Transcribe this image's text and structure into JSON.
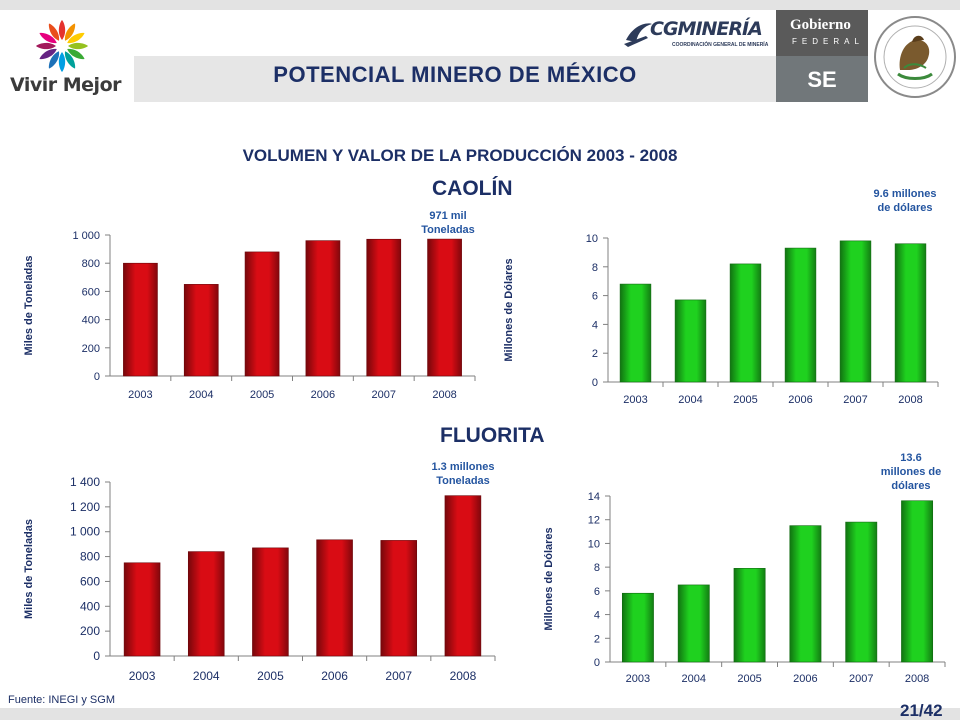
{
  "header": {
    "logo_left_text": "Vivir Mejor",
    "title": "POTENCIAL MINERO DE MÉXICO",
    "cgm_logo_text": "CGMINERÍA",
    "cgm_logo_sub": "COORDINACIÓN GENERAL DE MINERÍA",
    "gob_text": "Gobierno",
    "gob_sub": "FEDERAL",
    "se_text": "SE"
  },
  "subtitle": "VOLUMEN Y VALOR DE LA PRODUCCIÓN   2003 - 2008",
  "sections": {
    "caolin": "CAOLÍN",
    "fluorita": "FLUORITA"
  },
  "annotations": {
    "caolin_volume": [
      "971 mil",
      "Toneladas"
    ],
    "caolin_value": [
      "9.6 millones",
      "de dólares"
    ],
    "fluorita_volume": [
      "1.3 millones",
      "Toneladas"
    ],
    "fluorita_value": [
      "13.6",
      "millones de",
      "dólares"
    ]
  },
  "footer": {
    "source": "Fuente: INEGI y SGM",
    "page": "21/42"
  },
  "colors": {
    "red_bar": "#d90c14",
    "green_bar": "#1fd11f",
    "title_navy": "#1c2f66",
    "annotation_blue": "#2455a0"
  },
  "chart_data": [
    {
      "type": "bar",
      "title": "",
      "ylabel": "Miles de Toneladas",
      "categories": [
        "2003",
        "2004",
        "2005",
        "2006",
        "2007",
        "2008"
      ],
      "values": [
        800,
        650,
        880,
        960,
        970,
        971
      ],
      "ylim": [
        0,
        1000
      ],
      "yticks": [
        0,
        200,
        400,
        600,
        800,
        1000
      ],
      "ytick_labels": [
        "0",
        "200",
        "400",
        "600",
        "800",
        "1 000"
      ],
      "color": "#d90c14"
    },
    {
      "type": "bar",
      "title": "",
      "ylabel": "Millones de Dólares",
      "categories": [
        "2003",
        "2004",
        "2005",
        "2006",
        "2007",
        "2008"
      ],
      "values": [
        6.8,
        5.7,
        8.2,
        9.3,
        9.8,
        9.6
      ],
      "ylim": [
        0,
        10
      ],
      "yticks": [
        0,
        2,
        4,
        6,
        8,
        10
      ],
      "ytick_labels": [
        "0",
        "2",
        "4",
        "6",
        "8",
        "10"
      ],
      "color": "#1fd11f"
    },
    {
      "type": "bar",
      "title": "",
      "ylabel": "Miles de Toneladas",
      "categories": [
        "2003",
        "2004",
        "2005",
        "2006",
        "2007",
        "2008"
      ],
      "values": [
        750,
        840,
        870,
        935,
        930,
        1290
      ],
      "ylim": [
        0,
        1400
      ],
      "yticks": [
        0,
        200,
        400,
        600,
        800,
        1000,
        1200,
        1400
      ],
      "ytick_labels": [
        "0",
        "200",
        "400",
        "600",
        "800",
        "1 000",
        "1 200",
        "1 400"
      ],
      "color": "#d90c14"
    },
    {
      "type": "bar",
      "title": "",
      "ylabel": "Millones de Dólares",
      "categories": [
        "2003",
        "2004",
        "2005",
        "2006",
        "2007",
        "2008"
      ],
      "values": [
        5.8,
        6.5,
        7.9,
        11.5,
        11.8,
        13.6
      ],
      "ylim": [
        0,
        14
      ],
      "yticks": [
        0,
        2,
        4,
        6,
        8,
        10,
        12,
        14
      ],
      "ytick_labels": [
        "0",
        "2",
        "4",
        "6",
        "8",
        "10",
        "12",
        "14"
      ],
      "color": "#1fd11f"
    }
  ]
}
